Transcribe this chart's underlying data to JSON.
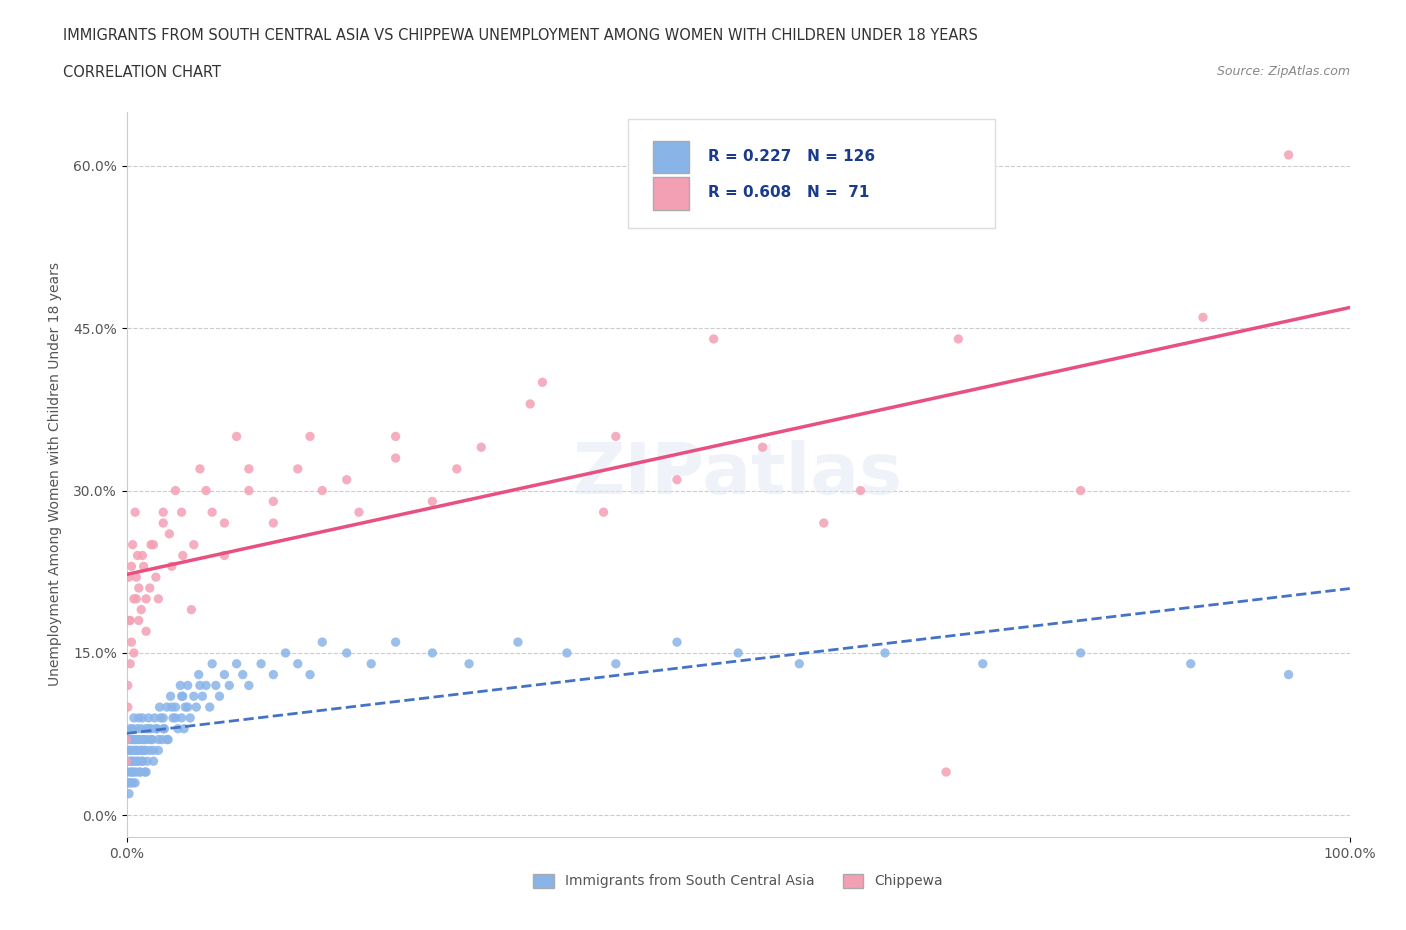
{
  "title_line1": "IMMIGRANTS FROM SOUTH CENTRAL ASIA VS CHIPPEWA UNEMPLOYMENT AMONG WOMEN WITH CHILDREN UNDER 18 YEARS",
  "title_line2": "CORRELATION CHART",
  "source_text": "Source: ZipAtlas.com",
  "xlabel": "",
  "ylabel": "Unemployment Among Women with Children Under 18 years",
  "xlim": [
    0.0,
    1.0
  ],
  "ylim": [
    -0.02,
    0.65
  ],
  "yticks": [
    0.0,
    0.15,
    0.3,
    0.45,
    0.6
  ],
  "ytick_labels": [
    "0.0%",
    "15.0%",
    "30.0%",
    "45.0%",
    "60.0%"
  ],
  "xticks": [
    0.0,
    1.0
  ],
  "xtick_labels": [
    "0.0%",
    "100.0%"
  ],
  "r_blue": 0.227,
  "n_blue": 126,
  "r_pink": 0.608,
  "n_pink": 71,
  "blue_color": "#89b4e8",
  "pink_color": "#f4a0b4",
  "blue_line_color": "#4472c4",
  "pink_line_color": "#e85080",
  "watermark": "ZIPatlas",
  "legend_label_blue": "Immigrants from South Central Asia",
  "legend_label_pink": "Chippewa",
  "blue_scatter_x": [
    0.0,
    0.001,
    0.001,
    0.002,
    0.002,
    0.002,
    0.003,
    0.003,
    0.003,
    0.003,
    0.004,
    0.004,
    0.004,
    0.005,
    0.005,
    0.005,
    0.006,
    0.006,
    0.006,
    0.007,
    0.007,
    0.008,
    0.008,
    0.009,
    0.009,
    0.01,
    0.01,
    0.011,
    0.011,
    0.012,
    0.012,
    0.013,
    0.013,
    0.014,
    0.015,
    0.015,
    0.016,
    0.017,
    0.017,
    0.018,
    0.019,
    0.02,
    0.021,
    0.022,
    0.023,
    0.025,
    0.026,
    0.027,
    0.029,
    0.03,
    0.031,
    0.033,
    0.034,
    0.036,
    0.038,
    0.04,
    0.042,
    0.044,
    0.045,
    0.046,
    0.047,
    0.048,
    0.05,
    0.052,
    0.055,
    0.057,
    0.059,
    0.062,
    0.065,
    0.068,
    0.07,
    0.073,
    0.076,
    0.08,
    0.084,
    0.09,
    0.095,
    0.1,
    0.11,
    0.12,
    0.13,
    0.14,
    0.15,
    0.16,
    0.18,
    0.2,
    0.22,
    0.25,
    0.28,
    0.32,
    0.36,
    0.4,
    0.45,
    0.5,
    0.55,
    0.62,
    0.7,
    0.78,
    0.87,
    0.95,
    0.0,
    0.001,
    0.002,
    0.003,
    0.004,
    0.005,
    0.006,
    0.007,
    0.008,
    0.009,
    0.01,
    0.011,
    0.012,
    0.013,
    0.014,
    0.015,
    0.016,
    0.018,
    0.02,
    0.022,
    0.024,
    0.026,
    0.028,
    0.03,
    0.033,
    0.037,
    0.04,
    0.045,
    0.05,
    0.06
  ],
  "blue_scatter_y": [
    0.05,
    0.03,
    0.04,
    0.06,
    0.02,
    0.07,
    0.05,
    0.08,
    0.03,
    0.06,
    0.04,
    0.07,
    0.05,
    0.06,
    0.03,
    0.08,
    0.07,
    0.04,
    0.09,
    0.06,
    0.05,
    0.07,
    0.04,
    0.08,
    0.06,
    0.05,
    0.09,
    0.07,
    0.04,
    0.08,
    0.06,
    0.05,
    0.09,
    0.07,
    0.06,
    0.04,
    0.08,
    0.07,
    0.05,
    0.09,
    0.06,
    0.08,
    0.07,
    0.05,
    0.09,
    0.08,
    0.06,
    0.1,
    0.07,
    0.09,
    0.08,
    0.1,
    0.07,
    0.11,
    0.09,
    0.1,
    0.08,
    0.12,
    0.09,
    0.11,
    0.08,
    0.1,
    0.12,
    0.09,
    0.11,
    0.1,
    0.13,
    0.11,
    0.12,
    0.1,
    0.14,
    0.12,
    0.11,
    0.13,
    0.12,
    0.14,
    0.13,
    0.12,
    0.14,
    0.13,
    0.15,
    0.14,
    0.13,
    0.16,
    0.15,
    0.14,
    0.16,
    0.15,
    0.14,
    0.16,
    0.15,
    0.14,
    0.16,
    0.15,
    0.14,
    0.15,
    0.14,
    0.15,
    0.14,
    0.13,
    0.04,
    0.05,
    0.03,
    0.06,
    0.04,
    0.05,
    0.07,
    0.03,
    0.06,
    0.05,
    0.07,
    0.04,
    0.06,
    0.05,
    0.07,
    0.06,
    0.04,
    0.08,
    0.07,
    0.06,
    0.08,
    0.07,
    0.09,
    0.08,
    0.07,
    0.1,
    0.09,
    0.11,
    0.1,
    0.12
  ],
  "pink_scatter_x": [
    0.0,
    0.001,
    0.002,
    0.003,
    0.004,
    0.005,
    0.006,
    0.007,
    0.008,
    0.009,
    0.01,
    0.012,
    0.014,
    0.016,
    0.019,
    0.022,
    0.026,
    0.03,
    0.035,
    0.04,
    0.046,
    0.053,
    0.06,
    0.07,
    0.08,
    0.09,
    0.1,
    0.12,
    0.14,
    0.16,
    0.19,
    0.22,
    0.25,
    0.29,
    0.34,
    0.39,
    0.45,
    0.52,
    0.6,
    0.68,
    0.78,
    0.88,
    0.95,
    0.0,
    0.001,
    0.002,
    0.003,
    0.004,
    0.006,
    0.008,
    0.01,
    0.013,
    0.016,
    0.02,
    0.024,
    0.03,
    0.037,
    0.045,
    0.055,
    0.065,
    0.08,
    0.1,
    0.12,
    0.15,
    0.18,
    0.22,
    0.27,
    0.33,
    0.4,
    0.48,
    0.57,
    0.67
  ],
  "pink_scatter_y": [
    0.07,
    0.1,
    0.22,
    0.18,
    0.23,
    0.25,
    0.15,
    0.28,
    0.2,
    0.24,
    0.21,
    0.19,
    0.23,
    0.17,
    0.21,
    0.25,
    0.2,
    0.28,
    0.26,
    0.3,
    0.24,
    0.19,
    0.32,
    0.28,
    0.24,
    0.35,
    0.3,
    0.27,
    0.32,
    0.3,
    0.28,
    0.33,
    0.29,
    0.34,
    0.4,
    0.28,
    0.31,
    0.34,
    0.3,
    0.44,
    0.3,
    0.46,
    0.61,
    0.05,
    0.12,
    0.18,
    0.14,
    0.16,
    0.2,
    0.22,
    0.18,
    0.24,
    0.2,
    0.25,
    0.22,
    0.27,
    0.23,
    0.28,
    0.25,
    0.3,
    0.27,
    0.32,
    0.29,
    0.35,
    0.31,
    0.35,
    0.32,
    0.38,
    0.35,
    0.44,
    0.27,
    0.04
  ]
}
